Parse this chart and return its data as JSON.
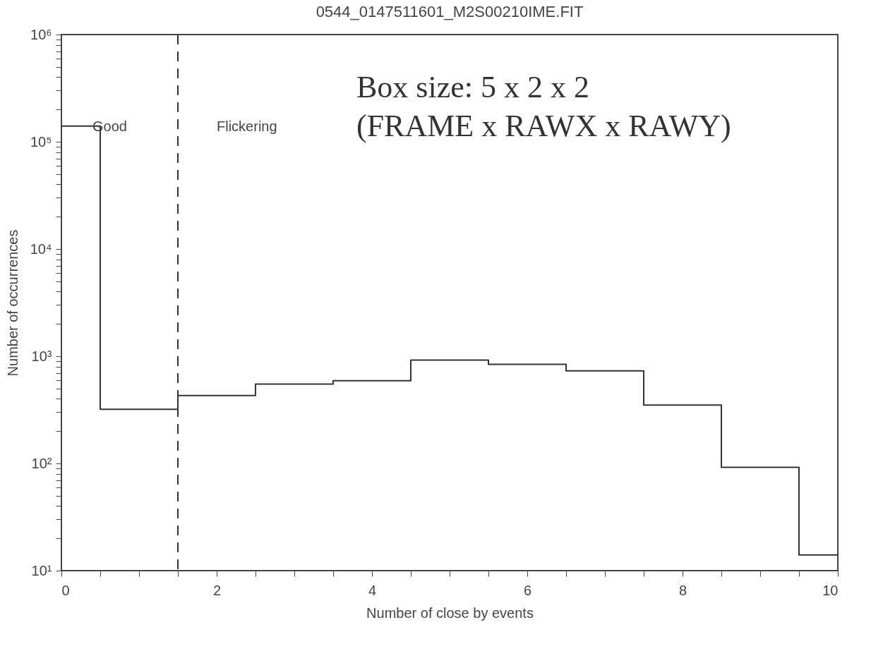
{
  "chart_data": {
    "type": "histogram",
    "title": "0544_0147511601_M2S00210IME.FIT",
    "xlabel": "Number of close by events",
    "ylabel": "Number of occurrences",
    "bins": [
      0,
      0.5,
      1.5,
      2.5,
      3.5,
      4.5,
      5.5,
      6.5,
      7.5,
      8.5,
      9.5,
      10
    ],
    "values": [
      140000,
      320,
      430,
      550,
      590,
      920,
      840,
      730,
      350,
      92,
      14
    ],
    "color": "#333333",
    "log": "y",
    "grid": false,
    "xlim": [
      0,
      10
    ],
    "xticks": [
      0,
      {
        "value": 0.5,
        "label": null
      },
      {
        "value": 1,
        "label": null
      },
      {
        "value": 1.5,
        "label": null
      },
      2,
      {
        "value": 2.5,
        "label": null
      },
      {
        "value": 3,
        "label": null
      },
      {
        "value": 3.5,
        "label": null
      },
      4,
      {
        "value": 4.5,
        "label": null
      },
      {
        "value": 5,
        "label": null
      },
      {
        "value": 5.5,
        "label": null
      },
      6,
      {
        "value": 6.5,
        "label": null
      },
      {
        "value": 7,
        "label": null
      },
      {
        "value": 7.5,
        "label": null
      },
      8,
      {
        "value": 8.5,
        "label": null
      },
      {
        "value": 9,
        "label": null
      },
      {
        "value": 9.5,
        "label": null
      },
      10
    ],
    "ylim": [
      10,
      1000000
    ],
    "yticks": [
      {
        "value": 10,
        "label": "10¹"
      },
      {
        "value": 20,
        "label": null
      },
      {
        "value": 30,
        "label": null
      },
      {
        "value": 40,
        "label": null
      },
      {
        "value": 50,
        "label": null
      },
      {
        "value": 60,
        "label": null
      },
      {
        "value": 70,
        "label": null
      },
      {
        "value": 80,
        "label": null
      },
      {
        "value": 90,
        "label": null
      },
      {
        "value": 100,
        "label": "10²"
      },
      {
        "value": 200,
        "label": null
      },
      {
        "value": 300,
        "label": null
      },
      {
        "value": 400,
        "label": null
      },
      {
        "value": 500,
        "label": null
      },
      {
        "value": 600,
        "label": null
      },
      {
        "value": 700,
        "label": null
      },
      {
        "value": 800,
        "label": null
      },
      {
        "value": 900,
        "label": null
      },
      {
        "value": 1000,
        "label": "10³"
      },
      {
        "value": 2000,
        "label": null
      },
      {
        "value": 3000,
        "label": null
      },
      {
        "value": 4000,
        "label": null
      },
      {
        "value": 5000,
        "label": null
      },
      {
        "value": 6000,
        "label": null
      },
      {
        "value": 7000,
        "label": null
      },
      {
        "value": 8000,
        "label": null
      },
      {
        "value": 9000,
        "label": null
      },
      {
        "value": 10000,
        "label": "10⁴"
      },
      {
        "value": 20000,
        "label": null
      },
      {
        "value": 30000,
        "label": null
      },
      {
        "value": 40000,
        "label": null
      },
      {
        "value": 50000,
        "label": null
      },
      {
        "value": 60000,
        "label": null
      },
      {
        "value": 70000,
        "label": null
      },
      {
        "value": 80000,
        "label": null
      },
      {
        "value": 90000,
        "label": null
      },
      {
        "value": 100000,
        "label": "10⁵"
      },
      {
        "value": 200000,
        "label": null
      },
      {
        "value": 300000,
        "label": null
      },
      {
        "value": 400000,
        "label": null
      },
      {
        "value": 500000,
        "label": null
      },
      {
        "value": 600000,
        "label": null
      },
      {
        "value": 700000,
        "label": null
      },
      {
        "value": 800000,
        "label": null
      },
      {
        "value": 900000,
        "label": null
      },
      {
        "value": 1000000,
        "label": "10⁶"
      }
    ],
    "ref_lines": [
      {
        "axis": "x",
        "value": 1.5,
        "line_style": "dashed",
        "color": "#333333"
      }
    ],
    "annotations": [
      "Good",
      "Flickering",
      "Box size: 5 x 2 x 2",
      "(FRAME x RAWX x RAWY)"
    ]
  }
}
